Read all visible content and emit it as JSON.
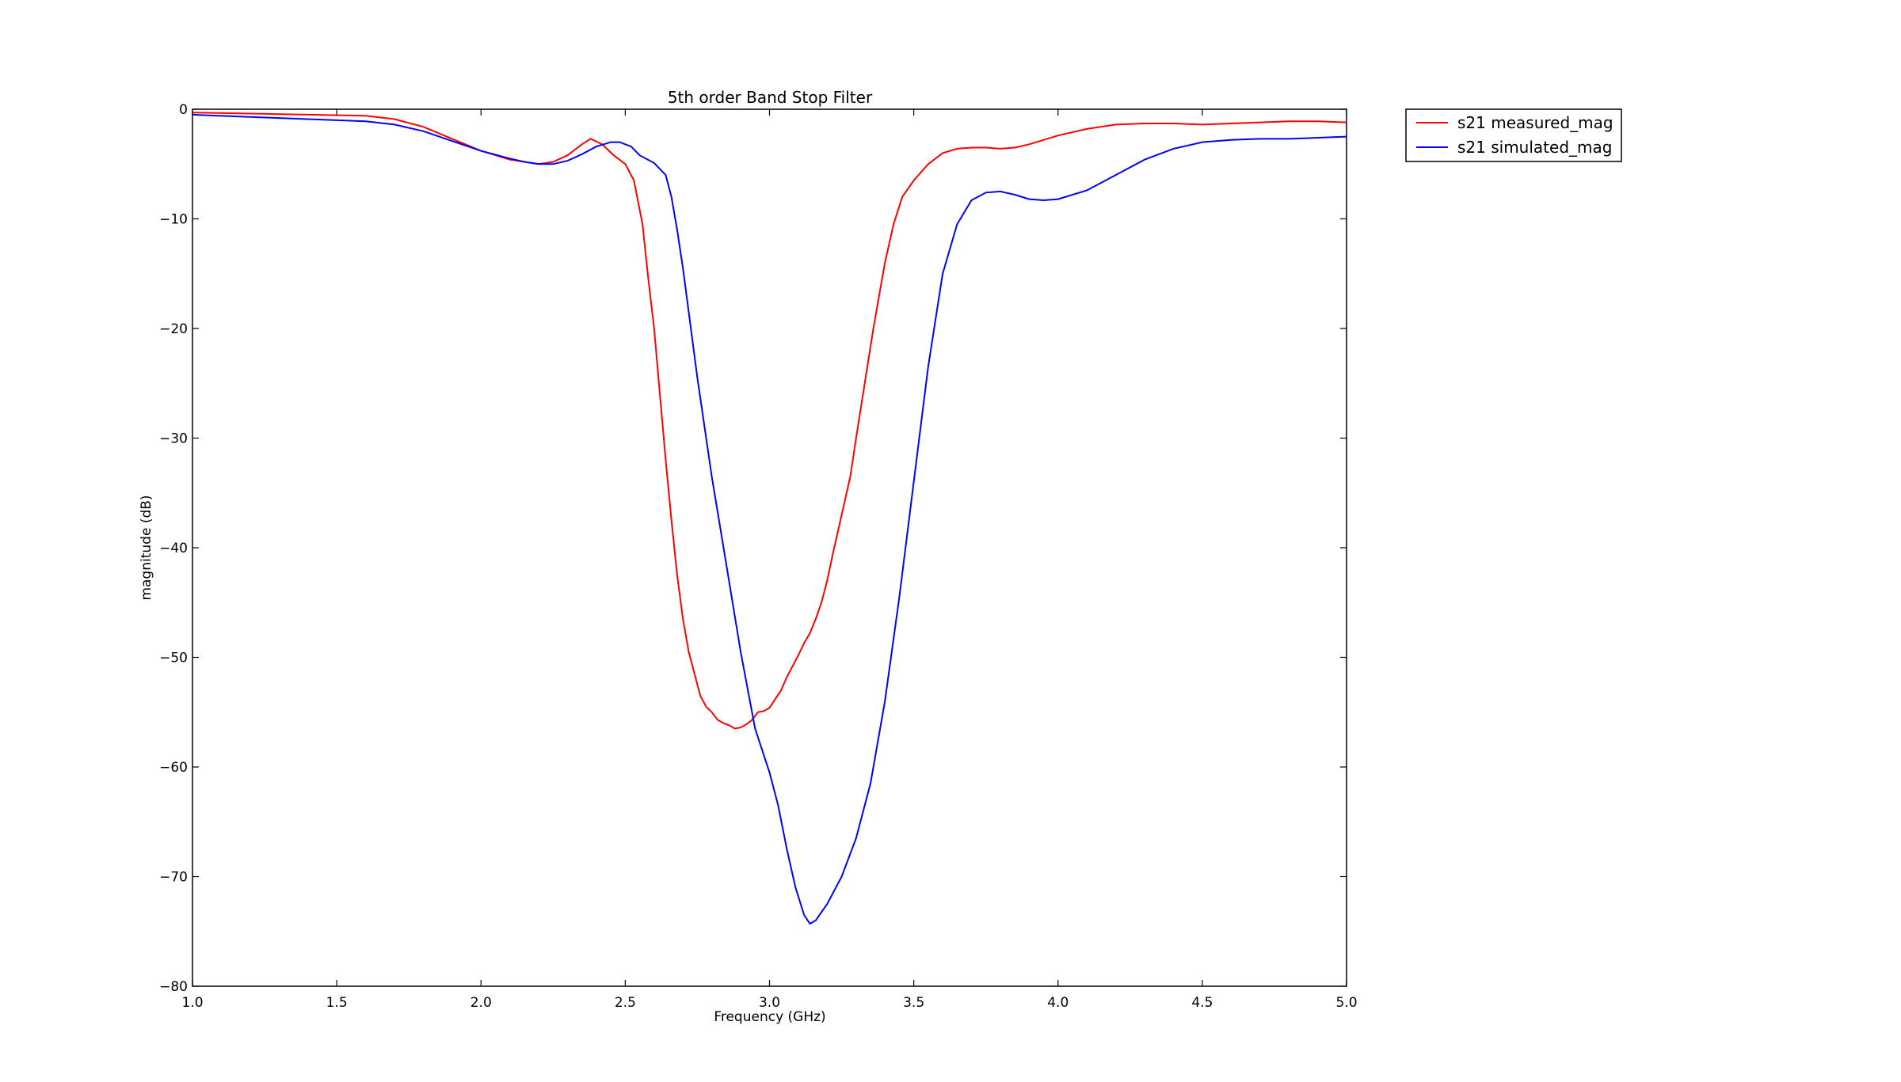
{
  "chart_data": {
    "type": "line",
    "title": "5th order Band Stop Filter",
    "xlabel": "Frequency (GHz)",
    "ylabel": "magnitude (dB)",
    "xlim": [
      1.0,
      5.0
    ],
    "ylim": [
      -80,
      0
    ],
    "xticks": [
      1.0,
      1.5,
      2.0,
      2.5,
      3.0,
      3.5,
      4.0,
      4.5,
      5.0
    ],
    "xtick_labels": [
      "1.0",
      "1.5",
      "2.0",
      "2.5",
      "3.0",
      "3.5",
      "4.0",
      "4.5",
      "5.0"
    ],
    "yticks": [
      0,
      -10,
      -20,
      -30,
      -40,
      -50,
      -60,
      -70,
      -80
    ],
    "ytick_labels": [
      "0",
      "−10",
      "−20",
      "−30",
      "−40",
      "−50",
      "−60",
      "−70",
      "−80"
    ],
    "grid": false,
    "legend_position": "outside-top-right",
    "series": [
      {
        "name": "s21 measured_mag",
        "color": "#ff0000",
        "points": [
          [
            1.0,
            -0.3
          ],
          [
            1.2,
            -0.4
          ],
          [
            1.4,
            -0.5
          ],
          [
            1.6,
            -0.6
          ],
          [
            1.7,
            -0.9
          ],
          [
            1.8,
            -1.6
          ],
          [
            1.9,
            -2.7
          ],
          [
            2.0,
            -3.8
          ],
          [
            2.1,
            -4.6
          ],
          [
            2.2,
            -5.0
          ],
          [
            2.25,
            -4.8
          ],
          [
            2.3,
            -4.2
          ],
          [
            2.35,
            -3.2
          ],
          [
            2.38,
            -2.7
          ],
          [
            2.42,
            -3.2
          ],
          [
            2.46,
            -4.2
          ],
          [
            2.5,
            -5.0
          ],
          [
            2.53,
            -6.5
          ],
          [
            2.56,
            -10.5
          ],
          [
            2.58,
            -15.5
          ],
          [
            2.6,
            -20.0
          ],
          [
            2.62,
            -26.0
          ],
          [
            2.64,
            -32.0
          ],
          [
            2.66,
            -37.5
          ],
          [
            2.68,
            -42.5
          ],
          [
            2.7,
            -46.5
          ],
          [
            2.72,
            -49.5
          ],
          [
            2.74,
            -51.5
          ],
          [
            2.76,
            -53.5
          ],
          [
            2.78,
            -54.5
          ],
          [
            2.8,
            -55.0
          ],
          [
            2.82,
            -55.7
          ],
          [
            2.84,
            -56.0
          ],
          [
            2.86,
            -56.2
          ],
          [
            2.88,
            -56.5
          ],
          [
            2.9,
            -56.4
          ],
          [
            2.92,
            -56.1
          ],
          [
            2.94,
            -55.7
          ],
          [
            2.96,
            -55.0
          ],
          [
            2.98,
            -54.9
          ],
          [
            3.0,
            -54.6
          ],
          [
            3.02,
            -53.8
          ],
          [
            3.04,
            -53.0
          ],
          [
            3.06,
            -51.8
          ],
          [
            3.08,
            -50.8
          ],
          [
            3.1,
            -49.8
          ],
          [
            3.12,
            -48.7
          ],
          [
            3.14,
            -47.8
          ],
          [
            3.16,
            -46.5
          ],
          [
            3.18,
            -45.0
          ],
          [
            3.2,
            -43.0
          ],
          [
            3.22,
            -40.5
          ],
          [
            3.25,
            -37.0
          ],
          [
            3.28,
            -33.5
          ],
          [
            3.3,
            -30.0
          ],
          [
            3.33,
            -25.0
          ],
          [
            3.36,
            -20.0
          ],
          [
            3.4,
            -14.0
          ],
          [
            3.43,
            -10.5
          ],
          [
            3.46,
            -8.0
          ],
          [
            3.5,
            -6.5
          ],
          [
            3.55,
            -5.0
          ],
          [
            3.6,
            -4.0
          ],
          [
            3.65,
            -3.6
          ],
          [
            3.7,
            -3.5
          ],
          [
            3.75,
            -3.5
          ],
          [
            3.8,
            -3.6
          ],
          [
            3.85,
            -3.5
          ],
          [
            3.9,
            -3.2
          ],
          [
            4.0,
            -2.4
          ],
          [
            4.1,
            -1.8
          ],
          [
            4.2,
            -1.4
          ],
          [
            4.3,
            -1.3
          ],
          [
            4.4,
            -1.3
          ],
          [
            4.5,
            -1.4
          ],
          [
            4.6,
            -1.3
          ],
          [
            4.7,
            -1.2
          ],
          [
            4.8,
            -1.1
          ],
          [
            4.9,
            -1.1
          ],
          [
            5.0,
            -1.2
          ]
        ]
      },
      {
        "name": "s21 simulated_mag",
        "color": "#0000ff",
        "points": [
          [
            1.0,
            -0.5
          ],
          [
            1.2,
            -0.7
          ],
          [
            1.4,
            -0.9
          ],
          [
            1.6,
            -1.1
          ],
          [
            1.7,
            -1.4
          ],
          [
            1.8,
            -2.0
          ],
          [
            1.9,
            -2.9
          ],
          [
            2.0,
            -3.8
          ],
          [
            2.1,
            -4.5
          ],
          [
            2.15,
            -4.8
          ],
          [
            2.2,
            -5.0
          ],
          [
            2.25,
            -5.0
          ],
          [
            2.3,
            -4.7
          ],
          [
            2.35,
            -4.1
          ],
          [
            2.4,
            -3.4
          ],
          [
            2.45,
            -3.0
          ],
          [
            2.48,
            -3.0
          ],
          [
            2.52,
            -3.4
          ],
          [
            2.55,
            -4.2
          ],
          [
            2.6,
            -4.9
          ],
          [
            2.64,
            -6.0
          ],
          [
            2.66,
            -8.0
          ],
          [
            2.68,
            -11.0
          ],
          [
            2.7,
            -14.5
          ],
          [
            2.72,
            -18.5
          ],
          [
            2.75,
            -24.5
          ],
          [
            2.8,
            -33.5
          ],
          [
            2.85,
            -41.5
          ],
          [
            2.9,
            -49.5
          ],
          [
            2.95,
            -56.5
          ],
          [
            3.0,
            -60.5
          ],
          [
            3.03,
            -63.5
          ],
          [
            3.06,
            -67.5
          ],
          [
            3.09,
            -71.0
          ],
          [
            3.12,
            -73.5
          ],
          [
            3.14,
            -74.3
          ],
          [
            3.16,
            -74.0
          ],
          [
            3.2,
            -72.5
          ],
          [
            3.25,
            -70.0
          ],
          [
            3.3,
            -66.5
          ],
          [
            3.35,
            -61.5
          ],
          [
            3.4,
            -54.0
          ],
          [
            3.45,
            -44.5
          ],
          [
            3.5,
            -34.0
          ],
          [
            3.55,
            -23.5
          ],
          [
            3.6,
            -15.0
          ],
          [
            3.65,
            -10.5
          ],
          [
            3.7,
            -8.3
          ],
          [
            3.75,
            -7.6
          ],
          [
            3.8,
            -7.5
          ],
          [
            3.85,
            -7.8
          ],
          [
            3.9,
            -8.2
          ],
          [
            3.95,
            -8.3
          ],
          [
            4.0,
            -8.2
          ],
          [
            4.1,
            -7.4
          ],
          [
            4.2,
            -6.0
          ],
          [
            4.3,
            -4.6
          ],
          [
            4.4,
            -3.6
          ],
          [
            4.5,
            -3.0
          ],
          [
            4.6,
            -2.8
          ],
          [
            4.7,
            -2.7
          ],
          [
            4.8,
            -2.7
          ],
          [
            4.9,
            -2.6
          ],
          [
            5.0,
            -2.5
          ]
        ]
      }
    ]
  }
}
